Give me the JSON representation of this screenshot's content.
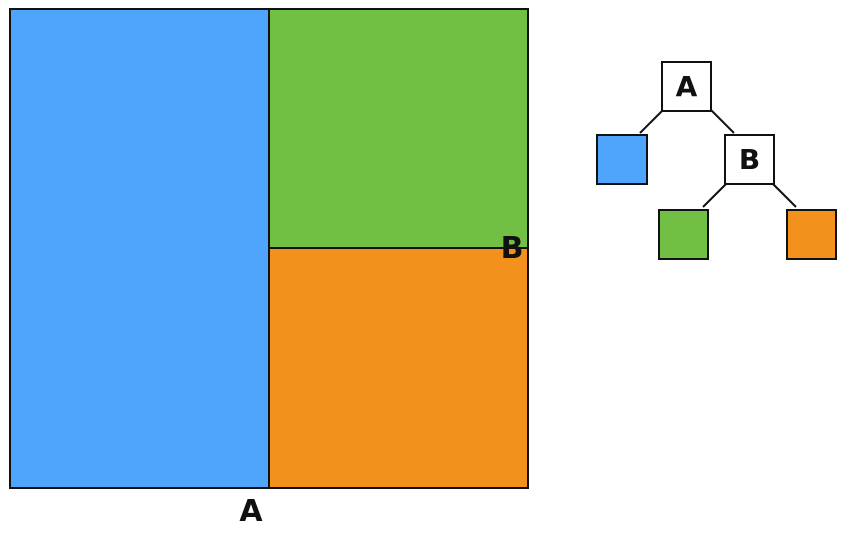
{
  "diagram": {
    "colors": {
      "blue": "#4fa4fb",
      "green": "#72c043",
      "orange": "#f2911b",
      "stroke": "#111111",
      "node_fill": "#ffffff"
    },
    "split_labels": {
      "vertical_split": "A",
      "horizontal_split": "B"
    },
    "tree": {
      "root_label": "A",
      "inner_label": "B",
      "leaves": [
        "blue",
        "green",
        "orange"
      ]
    }
  }
}
